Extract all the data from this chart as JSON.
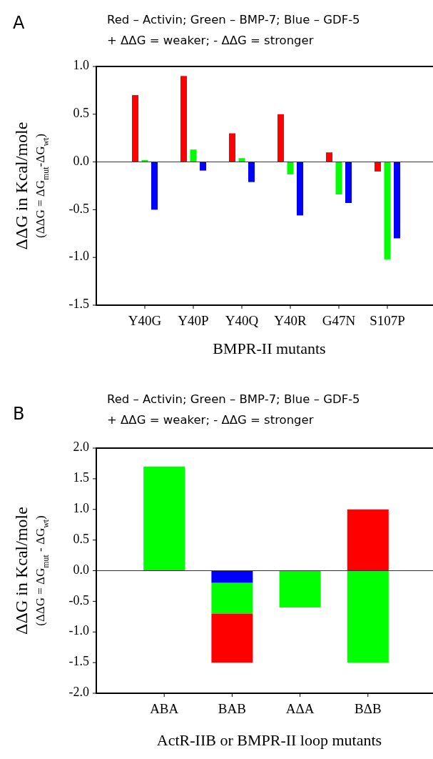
{
  "chart_data": [
    {
      "type": "bar",
      "title": "Red – Activin; Green – BMP-7; Blue – GDF-5",
      "subtitle": "+ ΔΔG = weaker; - ΔΔG = stronger",
      "annotations": [
        "A"
      ],
      "xlabel": "BMPR-II mutants",
      "ylabel": "ΔΔG in Kcal/mole\n(ΔΔG = ΔG$_{mut}$-ΔG$_{wt}$)",
      "categories": [
        "Y40G",
        "Y40P",
        "Y40Q",
        "Y40R",
        "G47N",
        "S107P"
      ],
      "series": [
        {
          "color": "#ff0000",
          "values": [
            0.7,
            0.9,
            0.3,
            0.5,
            0.1,
            -0.1
          ]
        },
        {
          "color": "#00ff00",
          "values": [
            0.02,
            0.13,
            0.04,
            -0.13,
            -0.34,
            -1.02
          ]
        },
        {
          "color": "#0000ff",
          "values": [
            -0.5,
            -0.09,
            -0.21,
            -0.56,
            -0.43,
            -0.8
          ]
        }
      ],
      "ylim": [
        -1.5,
        1.0
      ],
      "yticks": [
        {
          "value": -1.5,
          "label": "-1.5"
        },
        {
          "value": -1,
          "label": "-1.0"
        },
        {
          "value": -0.5,
          "label": "-0.5"
        },
        {
          "value": 0,
          "label": "0.0"
        },
        {
          "value": 0.5,
          "label": "0.5"
        },
        {
          "value": 1,
          "label": "1.0"
        }
      ],
      "ref_lines": [
        {
          "axis": "y",
          "value": 0
        }
      ]
    },
    {
      "type": "bar",
      "stacked": true,
      "title": "Red – Activin; Green – BMP-7; Blue – GDF-5",
      "subtitle": "+ ΔΔG = weaker; - ΔΔG = stronger",
      "annotations": [
        "B"
      ],
      "xlabel": "ActR-IIB or BMPR-II loop mutants",
      "ylabel": "ΔΔG in Kcal/mole\n(ΔΔG = ΔG$_{mut}$ - ΔG$_{wt}$)",
      "categories": [
        "ABA",
        "BAB",
        "AΔA",
        "BΔB"
      ],
      "series": [
        {
          "color": "#0000ff",
          "values": [
            null,
            -0.2,
            null,
            null
          ]
        },
        {
          "color": "#00ff00",
          "values": [
            1.7,
            -0.5,
            -0.6,
            -1.5
          ]
        },
        {
          "color": "#ff0000",
          "values": [
            null,
            -0.8,
            null,
            1.0
          ]
        }
      ],
      "ylim": [
        -2.0,
        2.0
      ],
      "yticks": [
        {
          "value": -2,
          "label": "-2.0"
        },
        {
          "value": -1.5,
          "label": "-1.5"
        },
        {
          "value": -1,
          "label": "-1.0"
        },
        {
          "value": -0.5,
          "label": "-0.5"
        },
        {
          "value": 0,
          "label": "0.0"
        },
        {
          "value": 0.5,
          "label": "0.5"
        },
        {
          "value": 1,
          "label": "1.0"
        },
        {
          "value": 1.5,
          "label": "1.5"
        },
        {
          "value": 2,
          "label": "2.0"
        }
      ],
      "ref_lines": [
        {
          "axis": "y",
          "value": 0
        }
      ]
    }
  ]
}
